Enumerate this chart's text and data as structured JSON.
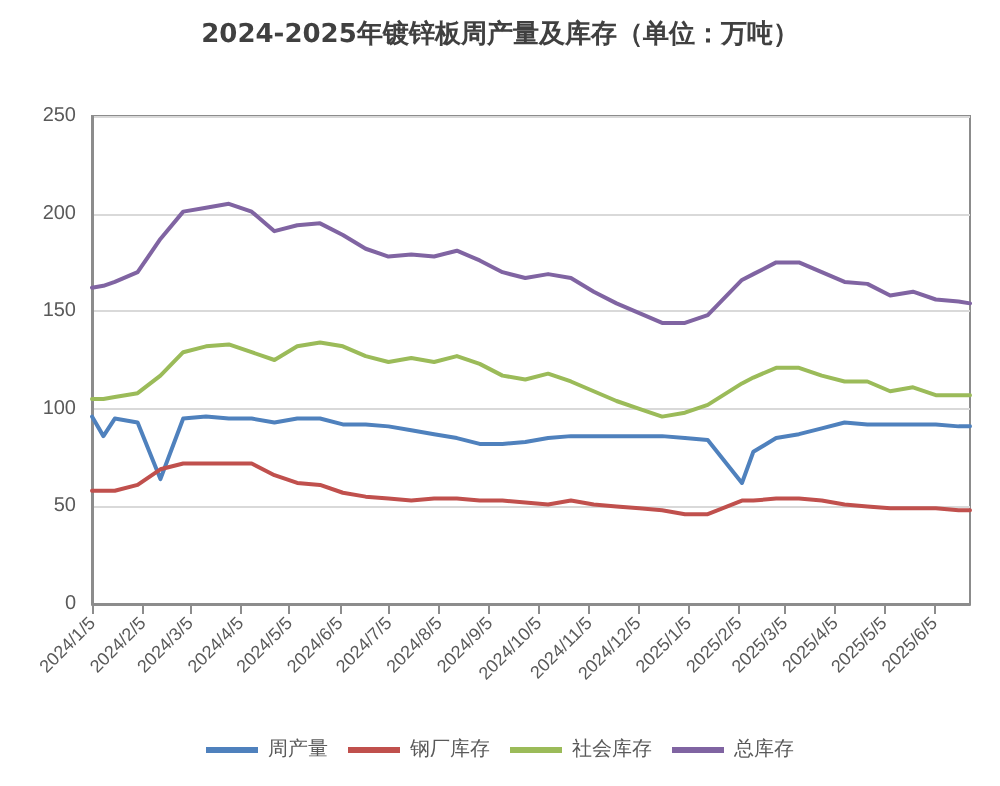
{
  "chart_data": {
    "type": "line",
    "title": "2024-2025年镀锌板周产量及库存（单位：万吨）",
    "x": [
      "2024-01-05",
      "2024-01-12",
      "2024-01-19",
      "2024-02-02",
      "2024-02-16",
      "2024-03-01",
      "2024-03-15",
      "2024-03-29",
      "2024-04-12",
      "2024-04-26",
      "2024-05-10",
      "2024-05-24",
      "2024-06-07",
      "2024-06-21",
      "2024-07-05",
      "2024-07-19",
      "2024-08-02",
      "2024-08-16",
      "2024-08-30",
      "2024-09-13",
      "2024-09-27",
      "2024-10-11",
      "2024-10-25",
      "2024-11-08",
      "2024-11-22",
      "2024-12-06",
      "2024-12-20",
      "2025-01-03",
      "2025-01-17",
      "2025-02-07",
      "2025-02-14",
      "2025-02-28",
      "2025-03-14",
      "2025-03-28",
      "2025-04-11",
      "2025-04-25",
      "2025-05-09",
      "2025-05-23",
      "2025-06-06",
      "2025-06-20",
      "2025-06-27"
    ],
    "series": [
      {
        "name": "周产量",
        "color": "#4f81bd",
        "values": [
          96,
          86,
          95,
          93,
          64,
          95,
          96,
          95,
          95,
          93,
          95,
          95,
          92,
          92,
          91,
          89,
          87,
          85,
          82,
          82,
          83,
          85,
          86,
          86,
          86,
          86,
          86,
          85,
          84,
          62,
          78,
          85,
          87,
          90,
          93,
          92,
          92,
          92,
          92,
          91,
          91
        ]
      },
      {
        "name": "钢厂库存",
        "color": "#c0504d",
        "values": [
          58,
          58,
          58,
          61,
          69,
          72,
          72,
          72,
          72,
          66,
          62,
          61,
          57,
          55,
          54,
          53,
          54,
          54,
          53,
          53,
          52,
          51,
          53,
          51,
          50,
          49,
          48,
          46,
          46,
          53,
          53,
          54,
          54,
          53,
          51,
          50,
          49,
          49,
          49,
          48,
          48
        ]
      },
      {
        "name": "社会库存",
        "color": "#9bbb59",
        "values": [
          105,
          105,
          106,
          108,
          117,
          129,
          132,
          133,
          129,
          125,
          132,
          134,
          132,
          127,
          124,
          126,
          124,
          127,
          123,
          117,
          115,
          118,
          114,
          109,
          104,
          100,
          96,
          98,
          102,
          113,
          116,
          121,
          121,
          117,
          114,
          114,
          109,
          111,
          107,
          107,
          107
        ]
      },
      {
        "name": "总库存",
        "color": "#8064a2",
        "values": [
          162,
          163,
          165,
          170,
          187,
          201,
          203,
          205,
          201,
          191,
          194,
          195,
          189,
          182,
          178,
          179,
          178,
          181,
          176,
          170,
          167,
          169,
          167,
          160,
          154,
          149,
          144,
          144,
          148,
          166,
          169,
          175,
          175,
          170,
          165,
          164,
          158,
          160,
          156,
          155,
          154
        ]
      }
    ],
    "xlim": [
      "2024-01-05",
      "2025-06-27"
    ],
    "xticks": [
      {
        "value": "2024-01-05",
        "label": "2024/1/5"
      },
      {
        "value": "2024-02-05",
        "label": "2024/2/5"
      },
      {
        "value": "2024-03-05",
        "label": "2024/3/5"
      },
      {
        "value": "2024-04-05",
        "label": "2024/4/5"
      },
      {
        "value": "2024-05-05",
        "label": "2024/5/5"
      },
      {
        "value": "2024-06-05",
        "label": "2024/6/5"
      },
      {
        "value": "2024-07-05",
        "label": "2024/7/5"
      },
      {
        "value": "2024-08-05",
        "label": "2024/8/5"
      },
      {
        "value": "2024-09-05",
        "label": "2024/9/5"
      },
      {
        "value": "2024-10-05",
        "label": "2024/10/5"
      },
      {
        "value": "2024-11-05",
        "label": "2024/11/5"
      },
      {
        "value": "2024-12-05",
        "label": "2024/12/5"
      },
      {
        "value": "2025-01-05",
        "label": "2025/1/5"
      },
      {
        "value": "2025-02-05",
        "label": "2025/2/5"
      },
      {
        "value": "2025-03-05",
        "label": "2025/3/5"
      },
      {
        "value": "2025-04-05",
        "label": "2025/4/5"
      },
      {
        "value": "2025-05-05",
        "label": "2025/5/5"
      },
      {
        "value": "2025-06-05",
        "label": "2025/6/5"
      }
    ],
    "ylim": [
      0,
      250
    ],
    "yticks": [
      0,
      50,
      100,
      150,
      200,
      250
    ],
    "grid": "y",
    "legend": "bottom",
    "marker": "none",
    "line_style": "solid"
  }
}
